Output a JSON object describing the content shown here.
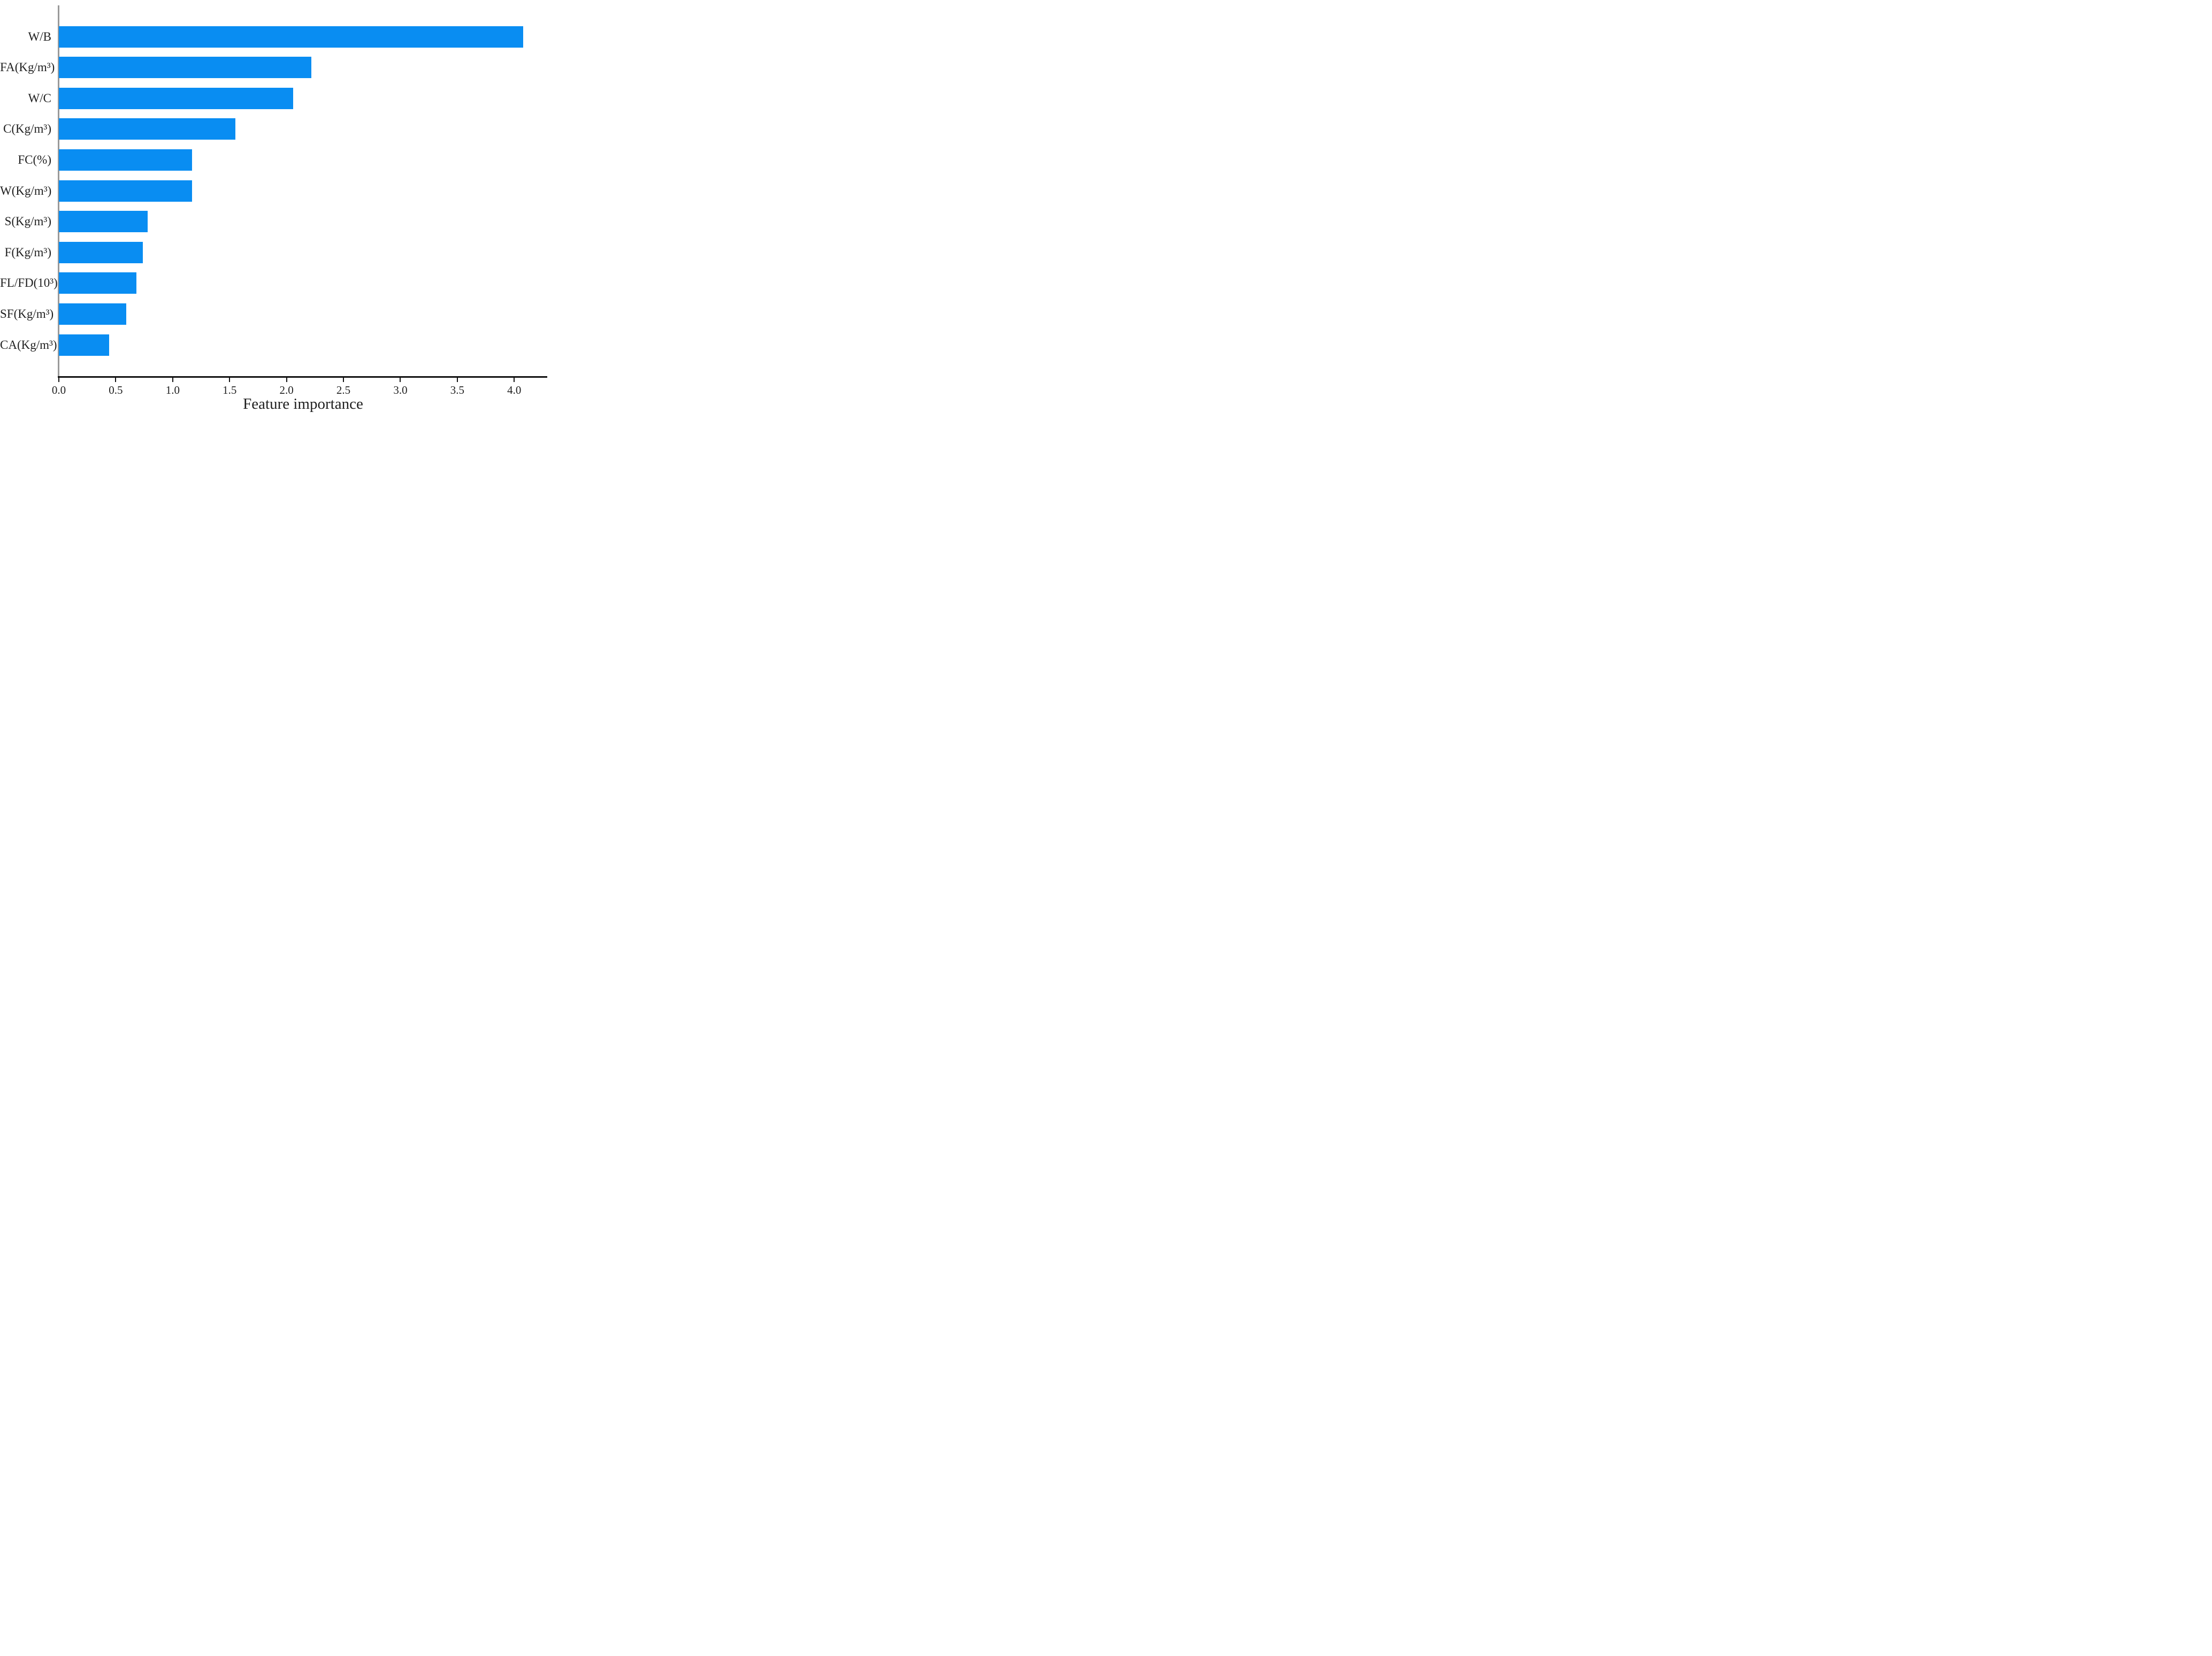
{
  "chart_data": {
    "type": "bar",
    "orientation": "horizontal",
    "title": "",
    "xlabel": "Feature importance",
    "ylabel": "",
    "categories": [
      "W/B",
      "FA(Kg/m³)",
      "W/C",
      "C(Kg/m³)",
      "FC(%)",
      "W(Kg/m³)",
      "S(Kg/m³)",
      "F(Kg/m³)",
      "FL/FD(10³)",
      "SF(Kg/m³)",
      "CA(Kg/m³)"
    ],
    "values": [
      4.08,
      2.22,
      2.06,
      1.55,
      1.17,
      1.17,
      0.78,
      0.74,
      0.68,
      0.59,
      0.44
    ],
    "x_ticks": [
      "0.0",
      "0.5",
      "1.0",
      "1.5",
      "2.0",
      "2.5",
      "3.0",
      "3.5",
      "4.0"
    ],
    "x_tick_values": [
      0.0,
      0.5,
      1.0,
      1.5,
      2.0,
      2.5,
      3.0,
      3.5,
      4.0
    ],
    "xlim": [
      0,
      4.29
    ],
    "grid": false,
    "legend": "none",
    "bar_color": "#098df2",
    "left_spine_color": "#9a9a9a",
    "bottom_spine_color": "#111111"
  }
}
